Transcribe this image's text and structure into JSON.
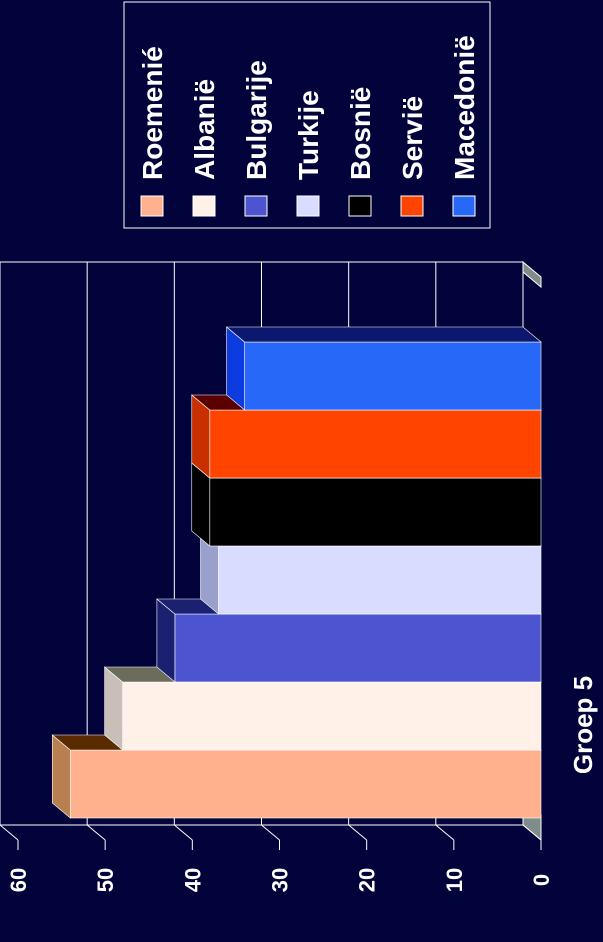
{
  "chart_data": {
    "type": "bar",
    "orientation": "horizontal-3d",
    "categories": [
      "Groep 5"
    ],
    "series": [
      {
        "name": "Roemenié",
        "values": [
          54
        ],
        "color": "#ffb08c",
        "top": "#5a2a00",
        "side": "#b88050"
      },
      {
        "name": "Albanië",
        "values": [
          48
        ],
        "color": "#fff0e8",
        "top": "#6c6c5c",
        "side": "#c8c0b8"
      },
      {
        "name": "Bulgarije",
        "values": [
          42
        ],
        "color": "#4c54d0",
        "top": "#1c2070",
        "side": "#1c2070"
      },
      {
        "name": "Turkije",
        "values": [
          37
        ],
        "color": "#d8dcff",
        "top": "#9aa0cc",
        "side": "#9aa0cc"
      },
      {
        "name": "Bosnië",
        "values": [
          38
        ],
        "color": "#000000",
        "top": "#000000",
        "side": "#000000"
      },
      {
        "name": "Servië",
        "values": [
          38
        ],
        "color": "#ff4400",
        "top": "#5a0000",
        "side": "#c83000"
      },
      {
        "name": "Macedonië",
        "values": [
          34
        ],
        "color": "#2868f8",
        "top": "#0c1870",
        "side": "#0c3ce0"
      }
    ],
    "ylim": [
      0,
      60
    ],
    "yticks": [
      "0",
      "10",
      "20",
      "30",
      "40",
      "50",
      "60"
    ],
    "grid": true,
    "legend": "top"
  }
}
